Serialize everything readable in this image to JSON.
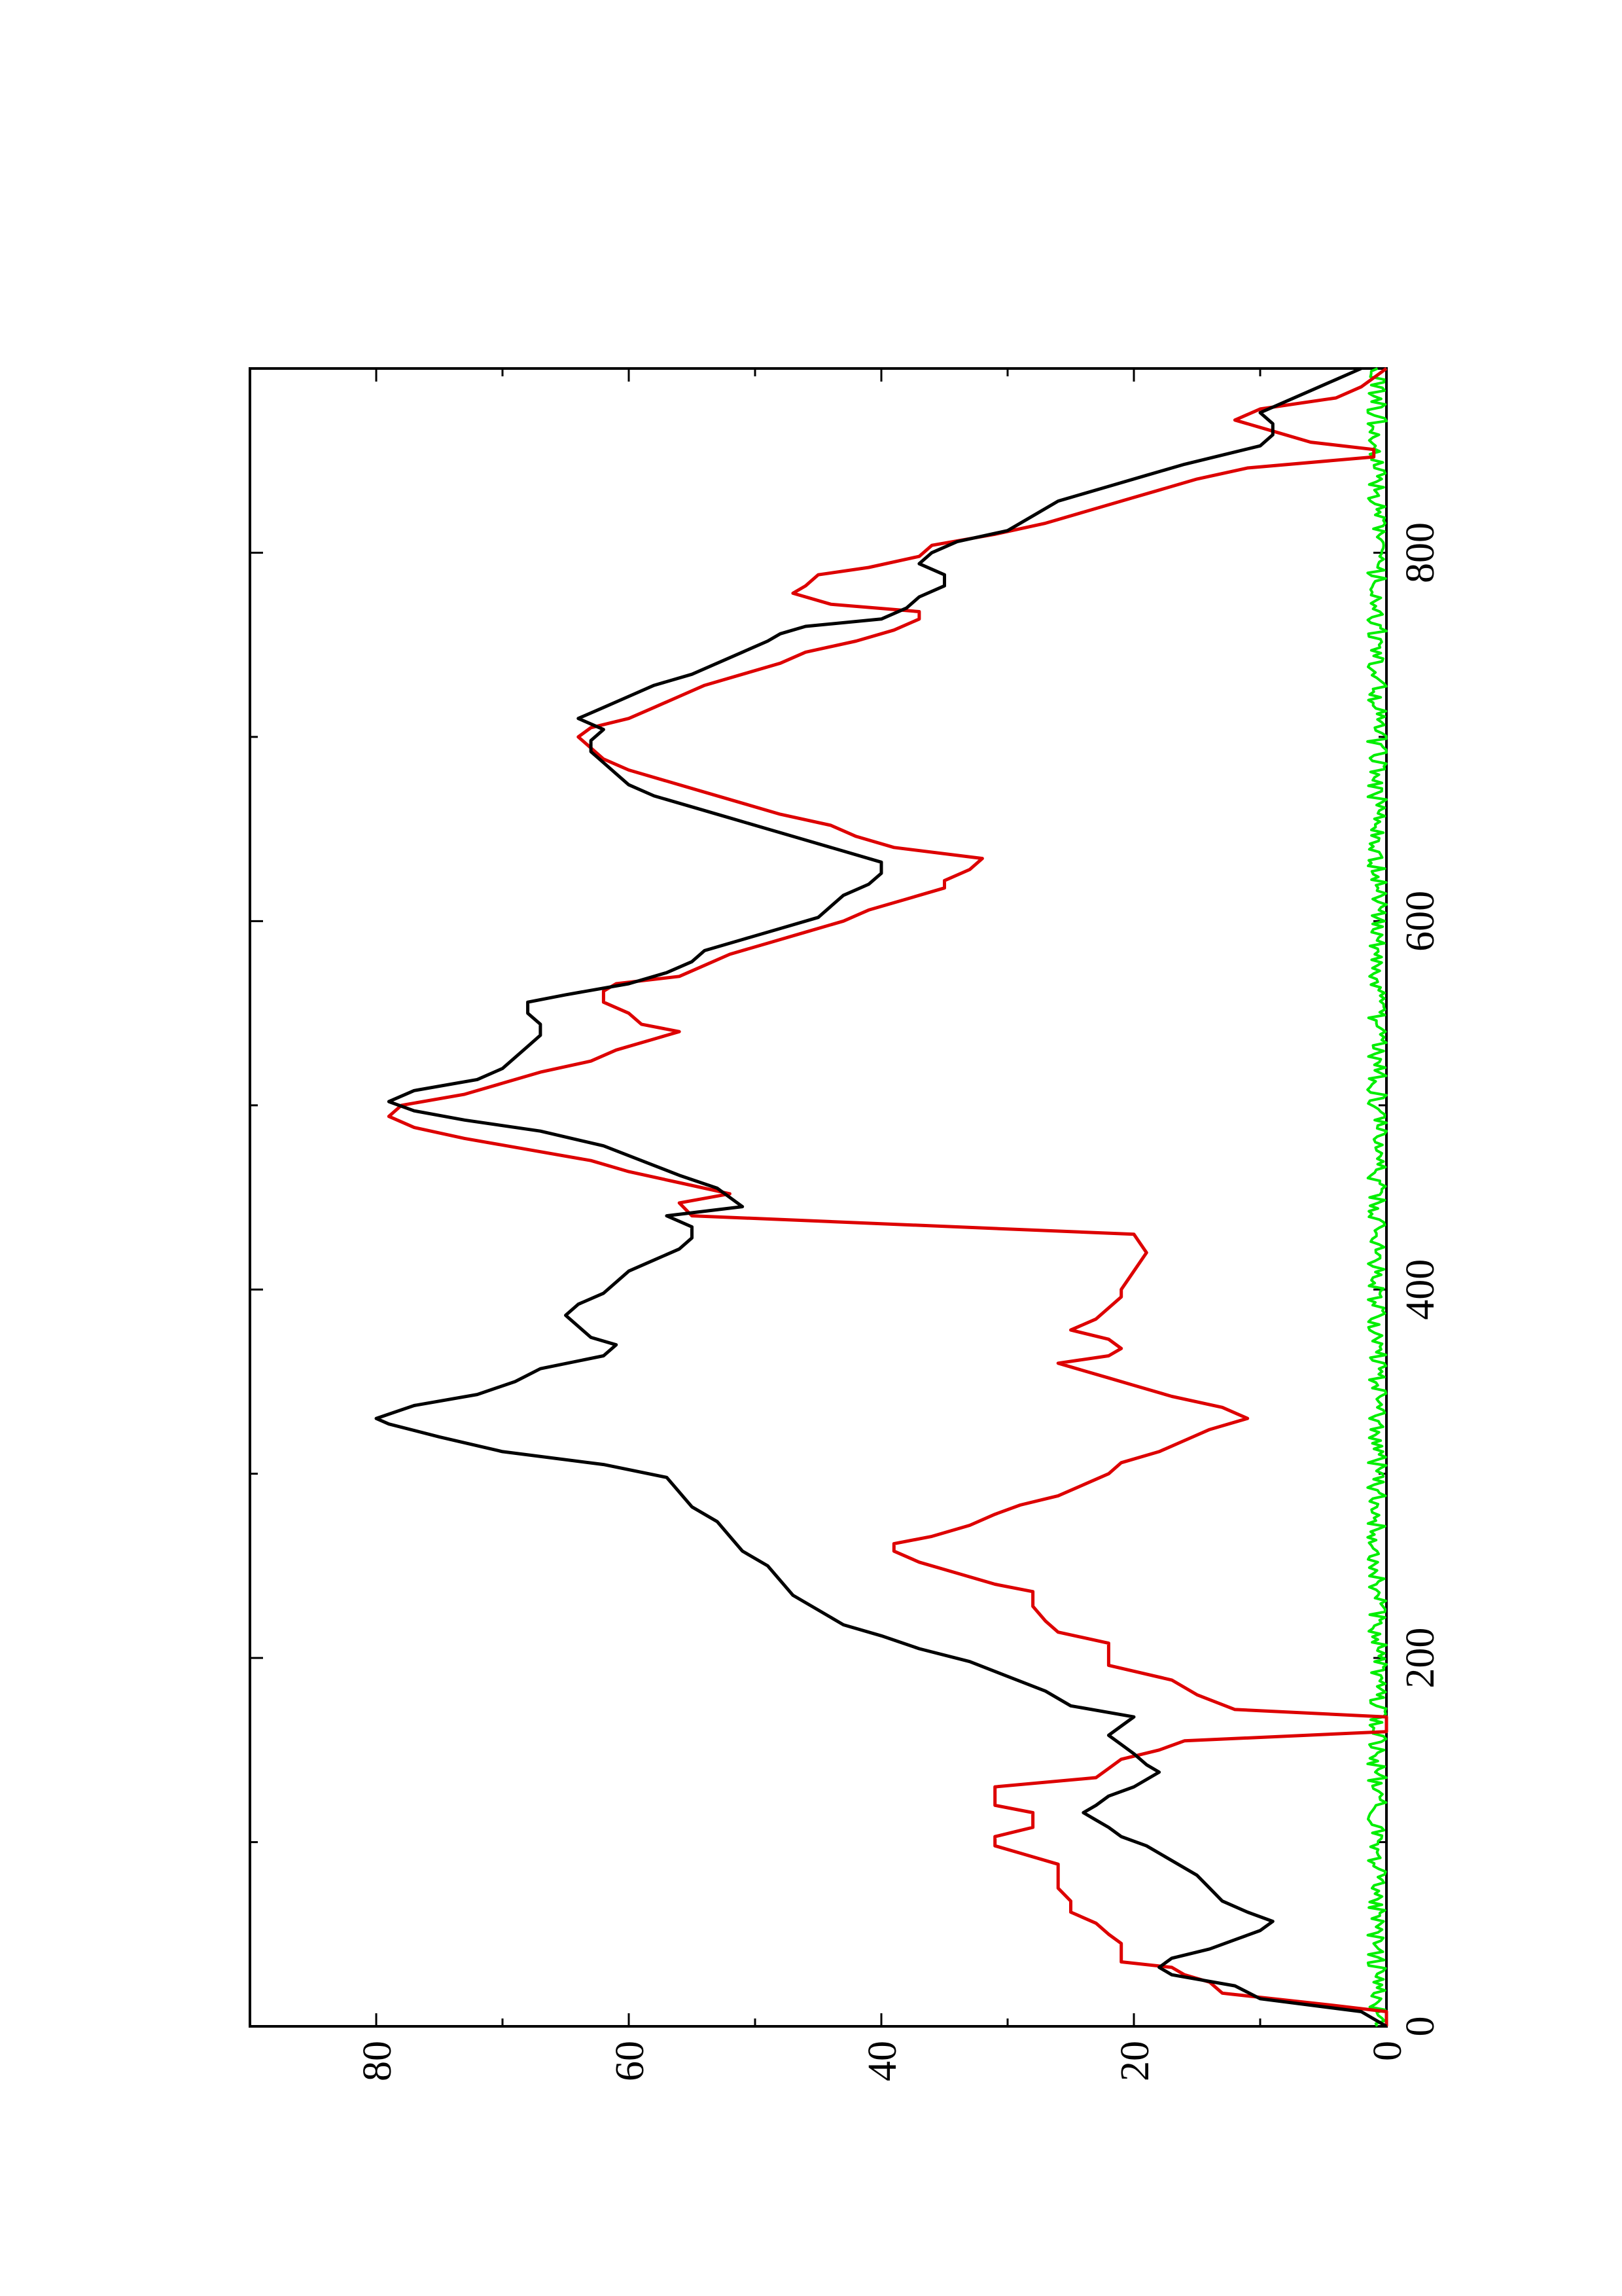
{
  "chart_data": {
    "type": "line",
    "orientation": "rotated-90-ccw",
    "title": "",
    "xlabel": "",
    "ylabel": "",
    "xlim": [
      0,
      900
    ],
    "ylim": [
      0,
      90
    ],
    "x_ticks": [
      0,
      200,
      400,
      600,
      800
    ],
    "x_minor_ticks": [
      100,
      300,
      500,
      700
    ],
    "y_ticks": [
      0,
      20,
      40,
      60,
      80
    ],
    "y_minor_ticks": [
      10,
      30,
      50,
      70
    ],
    "grid": false,
    "legend": "none",
    "series": [
      {
        "color": "#000000",
        "points": [
          [
            0,
            0
          ],
          [
            8,
            2
          ],
          [
            15,
            10
          ],
          [
            22,
            12
          ],
          [
            28,
            17
          ],
          [
            32,
            18
          ],
          [
            37,
            17
          ],
          [
            42,
            14
          ],
          [
            47,
            12
          ],
          [
            52,
            10
          ],
          [
            57,
            9
          ],
          [
            62,
            11
          ],
          [
            68,
            13
          ],
          [
            75,
            14
          ],
          [
            82,
            15
          ],
          [
            90,
            17
          ],
          [
            98,
            19
          ],
          [
            103,
            21
          ],
          [
            108,
            22
          ],
          [
            112,
            23
          ],
          [
            116,
            24
          ],
          [
            120,
            23
          ],
          [
            125,
            22
          ],
          [
            130,
            20
          ],
          [
            134,
            19
          ],
          [
            138,
            18
          ],
          [
            142,
            19
          ],
          [
            148,
            20
          ],
          [
            153,
            21
          ],
          [
            158,
            22
          ],
          [
            163,
            21
          ],
          [
            168,
            20
          ],
          [
            174,
            25
          ],
          [
            182,
            27
          ],
          [
            190,
            30
          ],
          [
            198,
            33
          ],
          [
            205,
            37
          ],
          [
            212,
            40
          ],
          [
            218,
            43
          ],
          [
            226,
            45
          ],
          [
            234,
            47
          ],
          [
            242,
            48
          ],
          [
            250,
            49
          ],
          [
            258,
            51
          ],
          [
            266,
            52
          ],
          [
            274,
            53
          ],
          [
            282,
            55
          ],
          [
            290,
            56
          ],
          [
            298,
            57
          ],
          [
            305,
            62
          ],
          [
            312,
            70
          ],
          [
            320,
            75
          ],
          [
            327,
            79
          ],
          [
            330,
            80
          ],
          [
            337,
            77
          ],
          [
            343,
            72
          ],
          [
            350,
            69
          ],
          [
            357,
            67
          ],
          [
            364,
            62
          ],
          [
            370,
            61
          ],
          [
            374,
            63
          ],
          [
            380,
            64
          ],
          [
            386,
            65
          ],
          [
            392,
            64
          ],
          [
            398,
            62
          ],
          [
            404,
            61
          ],
          [
            410,
            60
          ],
          [
            416,
            58
          ],
          [
            422,
            56
          ],
          [
            428,
            55
          ],
          [
            434,
            55
          ],
          [
            440,
            57
          ],
          [
            445,
            51
          ],
          [
            450,
            52
          ],
          [
            455,
            53
          ],
          [
            462,
            56
          ],
          [
            470,
            59
          ],
          [
            478,
            62
          ],
          [
            486,
            67
          ],
          [
            492,
            73
          ],
          [
            497,
            77
          ],
          [
            502,
            79
          ],
          [
            508,
            77
          ],
          [
            514,
            72
          ],
          [
            520,
            70
          ],
          [
            526,
            69
          ],
          [
            532,
            68
          ],
          [
            538,
            67
          ],
          [
            544,
            67
          ],
          [
            550,
            68
          ],
          [
            556,
            68
          ],
          [
            560,
            65
          ],
          [
            566,
            60
          ],
          [
            572,
            57
          ],
          [
            578,
            55
          ],
          [
            584,
            54
          ],
          [
            590,
            51
          ],
          [
            596,
            48
          ],
          [
            602,
            45
          ],
          [
            608,
            44
          ],
          [
            614,
            43
          ],
          [
            620,
            41
          ],
          [
            626,
            40
          ],
          [
            632,
            40
          ],
          [
            638,
            43
          ],
          [
            644,
            46
          ],
          [
            650,
            49
          ],
          [
            656,
            52
          ],
          [
            662,
            55
          ],
          [
            668,
            58
          ],
          [
            674,
            60
          ],
          [
            680,
            61
          ],
          [
            686,
            62
          ],
          [
            692,
            63
          ],
          [
            698,
            63
          ],
          [
            704,
            62
          ],
          [
            710,
            64
          ],
          [
            716,
            62
          ],
          [
            722,
            60
          ],
          [
            728,
            58
          ],
          [
            734,
            55
          ],
          [
            740,
            53
          ],
          [
            746,
            51
          ],
          [
            752,
            49
          ],
          [
            756,
            48
          ],
          [
            760,
            46
          ],
          [
            764,
            40
          ],
          [
            770,
            38
          ],
          [
            776,
            37
          ],
          [
            782,
            35
          ],
          [
            788,
            35
          ],
          [
            794,
            37
          ],
          [
            800,
            36
          ],
          [
            806,
            34
          ],
          [
            812,
            30
          ],
          [
            820,
            28
          ],
          [
            828,
            26
          ],
          [
            836,
            22
          ],
          [
            842,
            19
          ],
          [
            848,
            16
          ],
          [
            853,
            13
          ],
          [
            858,
            10
          ],
          [
            864,
            9
          ],
          [
            870,
            9
          ],
          [
            876,
            10
          ],
          [
            882,
            8
          ],
          [
            888,
            6
          ],
          [
            894,
            4
          ],
          [
            900,
            2
          ]
        ]
      },
      {
        "color": "#dd0000",
        "points": [
          [
            0,
            0
          ],
          [
            8,
            0
          ],
          [
            12,
            5
          ],
          [
            18,
            13
          ],
          [
            24,
            14
          ],
          [
            28,
            16
          ],
          [
            32,
            17
          ],
          [
            35,
            21
          ],
          [
            38,
            21
          ],
          [
            45,
            21
          ],
          [
            50,
            22
          ],
          [
            56,
            23
          ],
          [
            62,
            25
          ],
          [
            68,
            25
          ],
          [
            75,
            26
          ],
          [
            80,
            26
          ],
          [
            88,
            26
          ],
          [
            94,
            29
          ],
          [
            98,
            31
          ],
          [
            103,
            31
          ],
          [
            108,
            28
          ],
          [
            112,
            28
          ],
          [
            116,
            28
          ],
          [
            120,
            31
          ],
          [
            125,
            31
          ],
          [
            130,
            31
          ],
          [
            135,
            23
          ],
          [
            140,
            22
          ],
          [
            145,
            21
          ],
          [
            150,
            18
          ],
          [
            155,
            16
          ],
          [
            160,
            0
          ],
          [
            168,
            0
          ],
          [
            172,
            12
          ],
          [
            180,
            15
          ],
          [
            188,
            17
          ],
          [
            196,
            22
          ],
          [
            202,
            22
          ],
          [
            208,
            22
          ],
          [
            214,
            26
          ],
          [
            220,
            27
          ],
          [
            228,
            28
          ],
          [
            236,
            28
          ],
          [
            240,
            31
          ],
          [
            246,
            34
          ],
          [
            252,
            37
          ],
          [
            258,
            39
          ],
          [
            262,
            39
          ],
          [
            266,
            36
          ],
          [
            272,
            33
          ],
          [
            278,
            31
          ],
          [
            283,
            29
          ],
          [
            288,
            26
          ],
          [
            294,
            24
          ],
          [
            300,
            22
          ],
          [
            306,
            21
          ],
          [
            312,
            18
          ],
          [
            318,
            16
          ],
          [
            324,
            14
          ],
          [
            330,
            11
          ],
          [
            336,
            13
          ],
          [
            342,
            17
          ],
          [
            348,
            20
          ],
          [
            352,
            22
          ],
          [
            356,
            24
          ],
          [
            360,
            26
          ],
          [
            364,
            22
          ],
          [
            368,
            21
          ],
          [
            373,
            22
          ],
          [
            378,
            25
          ],
          [
            384,
            23
          ],
          [
            390,
            22
          ],
          [
            396,
            21
          ],
          [
            400,
            21
          ],
          [
            410,
            20
          ],
          [
            420,
            19
          ],
          [
            430,
            20
          ],
          [
            440,
            55
          ],
          [
            447,
            56
          ],
          [
            452,
            52
          ],
          [
            458,
            56
          ],
          [
            464,
            60
          ],
          [
            470,
            63
          ],
          [
            476,
            68
          ],
          [
            482,
            73
          ],
          [
            488,
            77
          ],
          [
            494,
            79
          ],
          [
            500,
            78
          ],
          [
            506,
            73
          ],
          [
            512,
            70
          ],
          [
            518,
            67
          ],
          [
            524,
            63
          ],
          [
            530,
            61
          ],
          [
            536,
            58
          ],
          [
            540,
            56
          ],
          [
            544,
            59
          ],
          [
            550,
            60
          ],
          [
            556,
            62
          ],
          [
            562,
            62
          ],
          [
            566,
            61
          ],
          [
            570,
            56
          ],
          [
            576,
            54
          ],
          [
            582,
            52
          ],
          [
            588,
            49
          ],
          [
            594,
            46
          ],
          [
            600,
            43
          ],
          [
            606,
            41
          ],
          [
            612,
            38
          ],
          [
            618,
            35
          ],
          [
            622,
            35
          ],
          [
            628,
            33
          ],
          [
            634,
            32
          ],
          [
            640,
            39
          ],
          [
            646,
            42
          ],
          [
            652,
            44
          ],
          [
            658,
            48
          ],
          [
            664,
            51
          ],
          [
            670,
            54
          ],
          [
            676,
            57
          ],
          [
            682,
            60
          ],
          [
            688,
            62
          ],
          [
            694,
            63
          ],
          [
            700,
            64
          ],
          [
            705,
            63
          ],
          [
            710,
            60
          ],
          [
            716,
            58
          ],
          [
            722,
            56
          ],
          [
            728,
            54
          ],
          [
            734,
            51
          ],
          [
            740,
            48
          ],
          [
            746,
            46
          ],
          [
            752,
            42
          ],
          [
            758,
            39
          ],
          [
            764,
            37
          ],
          [
            768,
            37
          ],
          [
            772,
            44
          ],
          [
            778,
            47
          ],
          [
            782,
            46
          ],
          [
            788,
            45
          ],
          [
            792,
            41
          ],
          [
            798,
            37
          ],
          [
            804,
            36
          ],
          [
            810,
            31
          ],
          [
            816,
            27
          ],
          [
            822,
            24
          ],
          [
            828,
            21
          ],
          [
            834,
            18
          ],
          [
            840,
            15
          ],
          [
            846,
            11
          ],
          [
            852,
            1
          ],
          [
            856,
            1
          ],
          [
            860,
            6
          ],
          [
            866,
            9
          ],
          [
            872,
            12
          ],
          [
            878,
            10
          ],
          [
            884,
            4
          ],
          [
            890,
            2
          ],
          [
            900,
            0
          ]
        ]
      },
      {
        "color": "#00ee00",
        "noise_baseline": true,
        "x_range": [
          0,
          900
        ],
        "y_range": [
          0,
          1.5
        ]
      }
    ]
  }
}
